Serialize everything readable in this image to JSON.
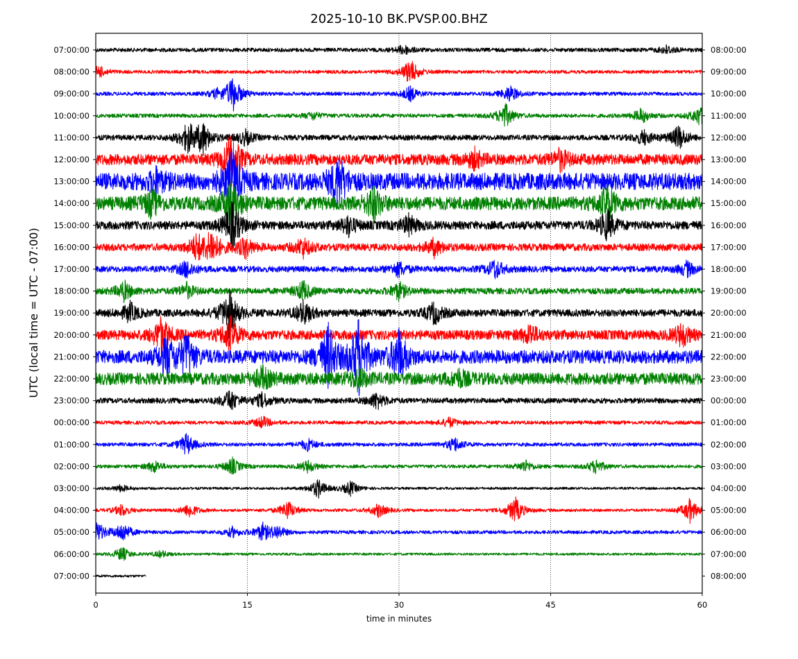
{
  "chart_data": {
    "type": "line",
    "title": "2025-10-10 BK.PVSP.00.BHZ",
    "xlabel": "time in minutes",
    "ylabel": "UTC (local time = UTC - 07:00)",
    "xlim": [
      0,
      60
    ],
    "x_ticks": [
      0,
      15,
      30,
      45,
      60
    ],
    "x_tick_labels": [
      "0",
      "15",
      "30",
      "45",
      "60"
    ],
    "vertical_gridlines_at": [
      15,
      30,
      45
    ],
    "grid_style": "dotted",
    "left_tick_labels": [
      "07:00:00",
      "08:00:00",
      "09:00:00",
      "10:00:00",
      "11:00:00",
      "12:00:00",
      "13:00:00",
      "14:00:00",
      "15:00:00",
      "16:00:00",
      "17:00:00",
      "18:00:00",
      "19:00:00",
      "20:00:00",
      "21:00:00",
      "22:00:00",
      "23:00:00",
      "00:00:00",
      "01:00:00",
      "02:00:00",
      "03:00:00",
      "04:00:00",
      "05:00:00",
      "06:00:00",
      "07:00:00"
    ],
    "right_tick_labels": [
      "08:00:00",
      "09:00:00",
      "10:00:00",
      "11:00:00",
      "12:00:00",
      "13:00:00",
      "14:00:00",
      "15:00:00",
      "16:00:00",
      "17:00:00",
      "18:00:00",
      "19:00:00",
      "20:00:00",
      "21:00:00",
      "22:00:00",
      "23:00:00",
      "00:00:00",
      "01:00:00",
      "02:00:00",
      "03:00:00",
      "04:00:00",
      "05:00:00",
      "06:00:00",
      "07:00:00",
      "08:00:00"
    ],
    "trace_colors": [
      "#000000",
      "#ff0000",
      "#0000ff",
      "#008000"
    ],
    "traces": [
      {
        "hour": "07:00:00",
        "color": "#000000",
        "amp": 0.16,
        "end": 60,
        "bursts": [
          [
            30.5,
            0.4
          ],
          [
            56.5,
            0.35
          ]
        ]
      },
      {
        "hour": "08:00:00",
        "color": "#ff0000",
        "amp": 0.14,
        "end": 60,
        "bursts": [
          [
            0.3,
            0.5
          ],
          [
            31.1,
            1.1
          ]
        ]
      },
      {
        "hour": "09:00:00",
        "color": "#0000ff",
        "amp": 0.15,
        "end": 60,
        "bursts": [
          [
            13.6,
            1.5
          ],
          [
            31.1,
            0.6
          ],
          [
            41.0,
            0.7
          ],
          [
            12.0,
            0.3
          ]
        ]
      },
      {
        "hour": "10:00:00",
        "color": "#008000",
        "amp": 0.16,
        "end": 60,
        "bursts": [
          [
            40.5,
            1.0
          ],
          [
            54.0,
            0.6
          ],
          [
            59.7,
            0.8
          ],
          [
            21.5,
            0.3
          ]
        ]
      },
      {
        "hour": "11:00:00",
        "color": "#000000",
        "amp": 0.22,
        "end": 60,
        "bursts": [
          [
            9.1,
            1.2
          ],
          [
            10.6,
            1.3
          ],
          [
            14.8,
            0.6
          ],
          [
            57.7,
            1.0
          ],
          [
            54.2,
            0.6
          ]
        ]
      },
      {
        "hour": "12:00:00",
        "color": "#ff0000",
        "amp": 0.45,
        "end": 60,
        "bursts": [
          [
            13.4,
            2.5
          ],
          [
            46.0,
            0.8
          ],
          [
            37.5,
            0.7
          ]
        ]
      },
      {
        "hour": "13:00:00",
        "color": "#0000ff",
        "amp": 0.7,
        "end": 60,
        "bursts": [
          [
            13.5,
            2.5
          ],
          [
            24.0,
            2.0
          ],
          [
            6.0,
            0.8
          ]
        ]
      },
      {
        "hour": "14:00:00",
        "color": "#008000",
        "amp": 0.55,
        "end": 60,
        "bursts": [
          [
            5.5,
            1.0
          ],
          [
            27.5,
            1.3
          ],
          [
            50.6,
            1.4
          ],
          [
            13.4,
            2.0
          ]
        ]
      },
      {
        "hour": "15:00:00",
        "color": "#000000",
        "amp": 0.35,
        "end": 60,
        "bursts": [
          [
            13.5,
            2.0
          ],
          [
            50.6,
            1.3
          ],
          [
            25.0,
            0.8
          ],
          [
            31.0,
            0.8
          ]
        ]
      },
      {
        "hour": "16:00:00",
        "color": "#ff0000",
        "amp": 0.3,
        "end": 60,
        "bursts": [
          [
            11.5,
            1.4
          ],
          [
            10.0,
            1.0
          ],
          [
            14.8,
            0.8
          ],
          [
            20.5,
            0.8
          ],
          [
            33.5,
            0.7
          ]
        ]
      },
      {
        "hour": "17:00:00",
        "color": "#0000ff",
        "amp": 0.25,
        "end": 60,
        "bursts": [
          [
            9.0,
            0.7
          ],
          [
            30.0,
            0.6
          ],
          [
            39.5,
            0.8
          ],
          [
            58.5,
            0.6
          ]
        ]
      },
      {
        "hour": "18:00:00",
        "color": "#008000",
        "amp": 0.25,
        "end": 60,
        "bursts": [
          [
            2.8,
            0.8
          ],
          [
            9.0,
            0.6
          ],
          [
            20.5,
            0.8
          ],
          [
            30.0,
            0.7
          ]
        ]
      },
      {
        "hour": "19:00:00",
        "color": "#000000",
        "amp": 0.3,
        "end": 60,
        "bursts": [
          [
            3.4,
            0.8
          ],
          [
            13.2,
            2.0
          ],
          [
            20.6,
            1.0
          ],
          [
            33.5,
            0.9
          ]
        ]
      },
      {
        "hour": "20:00:00",
        "color": "#ff0000",
        "amp": 0.4,
        "end": 60,
        "bursts": [
          [
            6.5,
            1.5
          ],
          [
            13.3,
            1.5
          ],
          [
            43.0,
            0.8
          ],
          [
            58.0,
            0.9
          ]
        ]
      },
      {
        "hour": "21:00:00",
        "color": "#0000ff",
        "amp": 0.55,
        "end": 60,
        "bursts": [
          [
            7.0,
            1.5
          ],
          [
            9.0,
            1.7
          ],
          [
            26.0,
            3.2
          ],
          [
            30.0,
            2.2
          ],
          [
            23.0,
            2.5
          ]
        ]
      },
      {
        "hour": "22:00:00",
        "color": "#008000",
        "amp": 0.5,
        "end": 60,
        "bursts": [
          [
            16.5,
            0.8
          ],
          [
            26.0,
            0.8
          ],
          [
            36.0,
            0.6
          ]
        ]
      },
      {
        "hour": "23:00:00",
        "color": "#000000",
        "amp": 0.22,
        "end": 60,
        "bursts": [
          [
            13.3,
            0.9
          ],
          [
            27.8,
            0.7
          ],
          [
            16.5,
            0.6
          ]
        ]
      },
      {
        "hour": "00:00:00",
        "color": "#ff0000",
        "amp": 0.15,
        "end": 60,
        "bursts": [
          [
            16.5,
            0.5
          ],
          [
            35.0,
            0.4
          ]
        ]
      },
      {
        "hour": "01:00:00",
        "color": "#0000ff",
        "amp": 0.15,
        "end": 60,
        "bursts": [
          [
            35.5,
            0.6
          ],
          [
            9.0,
            0.9
          ],
          [
            21.0,
            0.5
          ]
        ]
      },
      {
        "hour": "02:00:00",
        "color": "#008000",
        "amp": 0.14,
        "end": 60,
        "bursts": [
          [
            13.5,
            0.7
          ],
          [
            5.8,
            0.5
          ],
          [
            21.0,
            0.5
          ],
          [
            49.5,
            0.6
          ],
          [
            42.5,
            0.5
          ]
        ]
      },
      {
        "hour": "03:00:00",
        "color": "#000000",
        "amp": 0.1,
        "end": 60,
        "bursts": [
          [
            22.0,
            0.8
          ],
          [
            25.2,
            0.6
          ],
          [
            2.5,
            0.3
          ]
        ]
      },
      {
        "hour": "04:00:00",
        "color": "#ff0000",
        "amp": 0.12,
        "end": 60,
        "bursts": [
          [
            9.3,
            0.6
          ],
          [
            19.0,
            0.8
          ],
          [
            28.0,
            0.6
          ],
          [
            41.5,
            1.1
          ],
          [
            58.8,
            1.0
          ],
          [
            2.6,
            0.5
          ]
        ]
      },
      {
        "hour": "05:00:00",
        "color": "#0000ff",
        "amp": 0.14,
        "end": 60,
        "bursts": [
          [
            0.2,
            0.8
          ],
          [
            2.7,
            0.8
          ],
          [
            16.5,
            0.7
          ],
          [
            18.0,
            0.5
          ],
          [
            13.5,
            0.4
          ]
        ]
      },
      {
        "hour": "06:00:00",
        "color": "#008000",
        "amp": 0.1,
        "end": 60,
        "bursts": [
          [
            2.6,
            0.6
          ],
          [
            6.5,
            0.3
          ]
        ]
      },
      {
        "hour": "07:00:00",
        "color": "#000000",
        "amp": 0.1,
        "end": 5,
        "bursts": []
      }
    ]
  }
}
